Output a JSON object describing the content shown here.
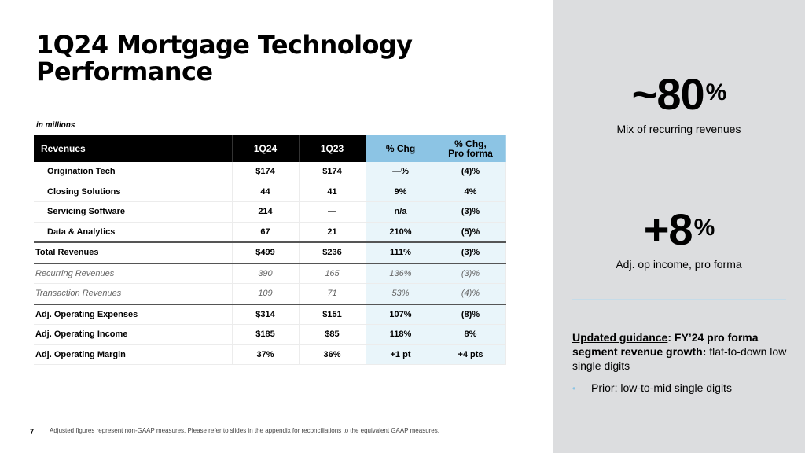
{
  "slide": {
    "title": "1Q24 Mortgage Technology Performance",
    "units_note": "in millions",
    "page_number": "7",
    "footnote": "Adjusted figures represent non-GAAP measures. Please refer to slides in the appendix for reconciliations to the equivalent GAAP measures."
  },
  "table": {
    "headers": [
      "Revenues",
      "1Q24",
      "1Q23",
      "% Chg",
      "% Chg,",
      "Pro forma"
    ],
    "rows": [
      {
        "label": "Origination Tech",
        "q24": "$174",
        "q23": "$174",
        "chg": "—%",
        "pf": "(4)%"
      },
      {
        "label": "Closing Solutions",
        "q24": "44",
        "q23": "41",
        "chg": "9%",
        "pf": "4%"
      },
      {
        "label": "Servicing Software",
        "q24": "214",
        "q23": "—",
        "chg": "n/a",
        "pf": "(3)%"
      },
      {
        "label": "Data & Analytics",
        "q24": "67",
        "q23": "21",
        "chg": "210%",
        "pf": "(5)%"
      },
      {
        "label": "Total Revenues",
        "q24": "$499",
        "q23": "$236",
        "chg": "111%",
        "pf": "(3)%"
      },
      {
        "label": "Recurring Revenues",
        "q24": "390",
        "q23": "165",
        "chg": "136%",
        "pf": "(3)%"
      },
      {
        "label": "Transaction Revenues",
        "q24": "109",
        "q23": "71",
        "chg": "53%",
        "pf": "(4)%"
      },
      {
        "label": "Adj. Operating Expenses",
        "q24": "$314",
        "q23": "$151",
        "chg": "107%",
        "pf": "(8)%"
      },
      {
        "label": "Adj. Operating Income",
        "q24": "$185",
        "q23": "$85",
        "chg": "118%",
        "pf": "8%"
      },
      {
        "label": "Adj. Operating Margin",
        "q24": "37%",
        "q23": "36%",
        "chg": "+1 pt",
        "pf": "+4 pts"
      }
    ]
  },
  "panel": {
    "kpi1": {
      "value": "~80",
      "unit": "%",
      "caption": "Mix of recurring revenues"
    },
    "kpi2": {
      "value": "+8",
      "unit": "%",
      "caption": "Adj. op income, pro forma"
    },
    "guidance": {
      "label": "Updated guidance",
      "colon": ": ",
      "bold_text": "FY’24 pro forma segment revenue growth:",
      "text": " flat-to-down low single digits"
    },
    "prior": {
      "bullet": "•",
      "label": "Prior",
      "colon": ":",
      "text": " low-to-mid single digits"
    }
  },
  "colors": {
    "panel_bg": "#dcdddf",
    "header_blue": "#8cc4e4",
    "highlight_blue": "#e9f5fa",
    "header_black": "#000000"
  }
}
